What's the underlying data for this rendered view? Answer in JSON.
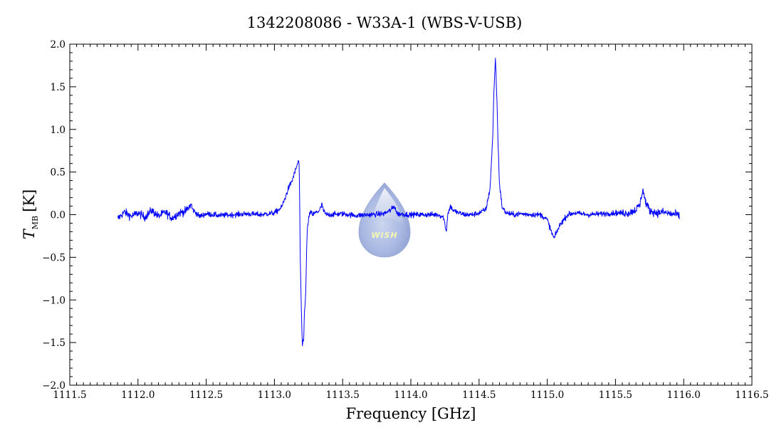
{
  "chart_data": {
    "type": "line",
    "title": "1342208086 - W33A-1 (WBS-V-USB)",
    "xlabel": "Frequency [GHz]",
    "ylabel": {
      "symbol": "T",
      "subscript": "MB",
      "unit": "[K]"
    },
    "xlim": [
      1111.5,
      1116.5
    ],
    "ylim": [
      -2.0,
      2.0
    ],
    "x_ticks": [
      {
        "value": 1111.5,
        "label": "1111.5"
      },
      {
        "value": 1112.0,
        "label": "1112.0"
      },
      {
        "value": 1112.5,
        "label": "1112.5"
      },
      {
        "value": 1113.0,
        "label": "1113.0"
      },
      {
        "value": 1113.5,
        "label": "1113.5"
      },
      {
        "value": 1114.0,
        "label": "1114.0"
      },
      {
        "value": 1114.5,
        "label": "1114.5"
      },
      {
        "value": 1115.0,
        "label": "1115.0"
      },
      {
        "value": 1115.5,
        "label": "1115.5"
      },
      {
        "value": 1116.0,
        "label": "1116.0"
      },
      {
        "value": 1116.5,
        "label": "1116.5"
      }
    ],
    "y_ticks": [
      {
        "value": 2.0,
        "label": "2.0"
      },
      {
        "value": 1.5,
        "label": "1.5"
      },
      {
        "value": 1.0,
        "label": "1.0"
      },
      {
        "value": 0.5,
        "label": "0.5"
      },
      {
        "value": 0.0,
        "label": "0.0"
      },
      {
        "value": -0.5,
        "label": "−0.5"
      },
      {
        "value": -1.0,
        "label": "−1.0"
      },
      {
        "value": -1.5,
        "label": "−1.5"
      },
      {
        "value": -2.0,
        "label": "−2.0"
      }
    ],
    "grid": false,
    "line_color": "#0000ff",
    "series": [
      {
        "x": [
          1111.85,
          1111.9,
          1111.95,
          1112.0,
          1112.05,
          1112.1,
          1112.15,
          1112.2,
          1112.25,
          1112.3,
          1112.35,
          1112.39,
          1112.4,
          1112.42,
          1112.45,
          1112.5,
          1112.6,
          1112.7,
          1112.8,
          1112.9,
          1113.0,
          1113.05,
          1113.08,
          1113.1,
          1113.13,
          1113.15,
          1113.17,
          1113.18,
          1113.185,
          1113.19,
          1113.2,
          1113.205,
          1113.21,
          1113.215,
          1113.22,
          1113.225,
          1113.23,
          1113.235,
          1113.24,
          1113.25,
          1113.26,
          1113.27,
          1113.28,
          1113.3,
          1113.33,
          1113.35,
          1113.36,
          1113.38,
          1113.4,
          1113.5,
          1113.6,
          1113.7,
          1113.8,
          1113.85,
          1113.88,
          1113.9,
          1114.0,
          1114.1,
          1114.2,
          1114.24,
          1114.26,
          1114.27,
          1114.29,
          1114.31,
          1114.35,
          1114.4,
          1114.45,
          1114.5,
          1114.55,
          1114.58,
          1114.6,
          1114.61,
          1114.62,
          1114.63,
          1114.64,
          1114.65,
          1114.67,
          1114.7,
          1114.75,
          1114.8,
          1114.9,
          1114.95,
          1115.0,
          1115.03,
          1115.05,
          1115.07,
          1115.1,
          1115.15,
          1115.2,
          1115.3,
          1115.4,
          1115.5,
          1115.6,
          1115.65,
          1115.68,
          1115.7,
          1115.72,
          1115.75,
          1115.8,
          1115.85,
          1115.9,
          1115.95,
          1115.97
        ],
        "y": [
          -0.05,
          0.03,
          -0.02,
          0.02,
          -0.03,
          0.05,
          -0.02,
          0.03,
          -0.04,
          0.02,
          0.04,
          0.12,
          0.06,
          0.03,
          -0.02,
          0.01,
          -0.01,
          0.0,
          0.01,
          0.0,
          0.02,
          0.08,
          0.2,
          0.3,
          0.4,
          0.5,
          0.6,
          0.64,
          0.2,
          -0.6,
          -1.3,
          -1.55,
          -1.45,
          -1.5,
          -1.1,
          -1.05,
          -0.9,
          -0.5,
          -0.2,
          -0.05,
          0.01,
          0.03,
          0.0,
          0.02,
          0.05,
          0.12,
          0.04,
          0.0,
          0.0,
          0.01,
          -0.01,
          0.0,
          0.01,
          0.05,
          0.1,
          0.01,
          0.0,
          0.0,
          0.0,
          -0.03,
          -0.2,
          0.0,
          0.1,
          0.05,
          0.02,
          0.0,
          0.0,
          0.02,
          0.06,
          0.3,
          0.9,
          1.5,
          1.83,
          1.4,
          0.8,
          0.35,
          0.08,
          0.02,
          0.0,
          0.01,
          0.0,
          0.0,
          -0.06,
          -0.2,
          -0.28,
          -0.2,
          -0.1,
          0.0,
          0.02,
          0.0,
          0.01,
          0.02,
          0.02,
          0.06,
          0.12,
          0.3,
          0.15,
          0.05,
          0.02,
          0.03,
          0.01,
          0.0,
          -0.02
        ]
      }
    ]
  },
  "logo": {
    "text": "WISH"
  }
}
